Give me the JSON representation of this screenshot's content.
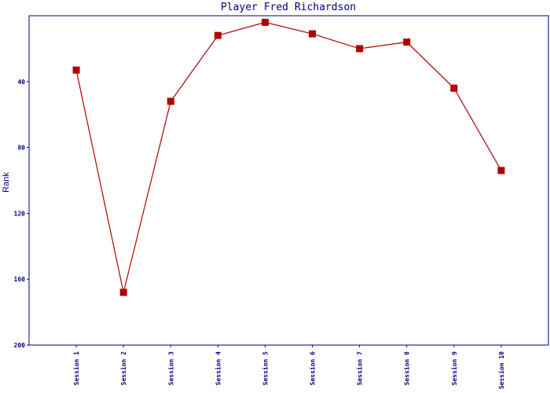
{
  "chart_data": {
    "type": "line",
    "title": "Player Fred Richardson",
    "y_label": "Rank",
    "categories": [
      "Session 1",
      "Session 2",
      "Session 3",
      "Session 4",
      "Session 5",
      "Session 6",
      "Session 7",
      "Session 8",
      "Session 9",
      "Session 10"
    ],
    "values": [
      33,
      168,
      52,
      12,
      4,
      11,
      20,
      16,
      44,
      94
    ],
    "color": "#b00000",
    "axis_color": "#000080",
    "ylim": [
      0,
      200
    ],
    "yticks": [
      40,
      80,
      120,
      160,
      200
    ],
    "y_inverted": true,
    "grid": false
  }
}
